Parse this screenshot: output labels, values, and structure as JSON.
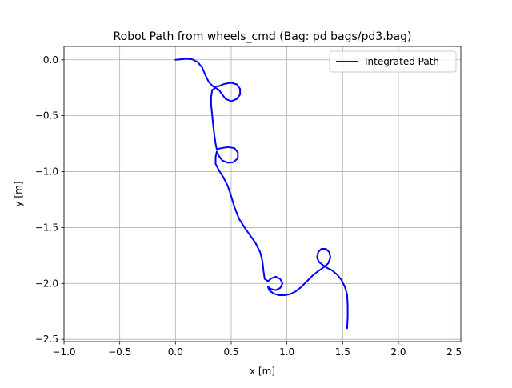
{
  "chart_data": {
    "type": "line",
    "title": "Robot Path from wheels_cmd (Bag: pd bags/pd3.bag)",
    "xlabel": "x [m]",
    "ylabel": "y [m]",
    "xlim": [
      -1.0,
      2.56
    ],
    "ylim": [
      -2.52,
      0.12
    ],
    "xticks": [
      -1.0,
      -0.5,
      0.0,
      0.5,
      1.0,
      1.5,
      2.0,
      2.5
    ],
    "xtick_labels": [
      "−1.0",
      "−0.5",
      "0.0",
      "0.5",
      "1.0",
      "1.5",
      "2.0",
      "2.5"
    ],
    "yticks": [
      0.0,
      -0.5,
      -1.0,
      -1.5,
      -2.0,
      -2.5
    ],
    "ytick_labels": [
      "0.0",
      "−0.5",
      "−1.0",
      "−1.5",
      "−2.0",
      "−2.5"
    ],
    "grid": true,
    "legend_position": "top-right",
    "series": [
      {
        "name": "Integrated Path",
        "color": "#0000ff",
        "points": [
          [
            0.0,
            0.0
          ],
          [
            0.05,
            0.005
          ],
          [
            0.1,
            0.01
          ],
          [
            0.15,
            0.005
          ],
          [
            0.2,
            -0.02
          ],
          [
            0.24,
            -0.07
          ],
          [
            0.27,
            -0.14
          ],
          [
            0.3,
            -0.2
          ],
          [
            0.34,
            -0.24
          ],
          [
            0.39,
            -0.235
          ],
          [
            0.44,
            -0.215
          ],
          [
            0.5,
            -0.205
          ],
          [
            0.55,
            -0.22
          ],
          [
            0.58,
            -0.26
          ],
          [
            0.58,
            -0.31
          ],
          [
            0.55,
            -0.35
          ],
          [
            0.5,
            -0.37
          ],
          [
            0.45,
            -0.35
          ],
          [
            0.42,
            -0.31
          ],
          [
            0.39,
            -0.27
          ],
          [
            0.36,
            -0.25
          ],
          [
            0.33,
            -0.27
          ],
          [
            0.32,
            -0.33
          ],
          [
            0.32,
            -0.4
          ],
          [
            0.33,
            -0.5
          ],
          [
            0.34,
            -0.6
          ],
          [
            0.35,
            -0.68
          ],
          [
            0.36,
            -0.75
          ],
          [
            0.37,
            -0.8
          ],
          [
            0.41,
            -0.79
          ],
          [
            0.47,
            -0.78
          ],
          [
            0.53,
            -0.79
          ],
          [
            0.56,
            -0.83
          ],
          [
            0.56,
            -0.88
          ],
          [
            0.52,
            -0.915
          ],
          [
            0.47,
            -0.92
          ],
          [
            0.42,
            -0.9
          ],
          [
            0.39,
            -0.86
          ],
          [
            0.37,
            -0.82
          ],
          [
            0.36,
            -0.87
          ],
          [
            0.36,
            -0.93
          ],
          [
            0.39,
            -0.99
          ],
          [
            0.43,
            -1.05
          ],
          [
            0.47,
            -1.13
          ],
          [
            0.5,
            -1.22
          ],
          [
            0.53,
            -1.32
          ],
          [
            0.57,
            -1.42
          ],
          [
            0.62,
            -1.5
          ],
          [
            0.67,
            -1.57
          ],
          [
            0.72,
            -1.64
          ],
          [
            0.76,
            -1.72
          ],
          [
            0.78,
            -1.8
          ],
          [
            0.79,
            -1.89
          ],
          [
            0.8,
            -1.96
          ],
          [
            0.83,
            -1.98
          ],
          [
            0.86,
            -1.955
          ],
          [
            0.9,
            -1.94
          ],
          [
            0.94,
            -1.96
          ],
          [
            0.96,
            -2.0
          ],
          [
            0.94,
            -2.04
          ],
          [
            0.9,
            -2.06
          ],
          [
            0.86,
            -2.05
          ],
          [
            0.83,
            -2.03
          ],
          [
            0.84,
            -2.06
          ],
          [
            0.88,
            -2.09
          ],
          [
            0.93,
            -2.105
          ],
          [
            0.98,
            -2.105
          ],
          [
            1.03,
            -2.095
          ],
          [
            1.08,
            -2.07
          ],
          [
            1.13,
            -2.03
          ],
          [
            1.18,
            -1.98
          ],
          [
            1.23,
            -1.93
          ],
          [
            1.28,
            -1.89
          ],
          [
            1.33,
            -1.855
          ],
          [
            1.37,
            -1.82
          ],
          [
            1.39,
            -1.77
          ],
          [
            1.38,
            -1.72
          ],
          [
            1.35,
            -1.69
          ],
          [
            1.31,
            -1.69
          ],
          [
            1.28,
            -1.72
          ],
          [
            1.27,
            -1.77
          ],
          [
            1.29,
            -1.81
          ],
          [
            1.33,
            -1.84
          ],
          [
            1.36,
            -1.86
          ],
          [
            1.4,
            -1.88
          ],
          [
            1.45,
            -1.92
          ],
          [
            1.49,
            -1.97
          ],
          [
            1.52,
            -2.03
          ],
          [
            1.54,
            -2.1
          ],
          [
            1.545,
            -2.2
          ],
          [
            1.545,
            -2.3
          ],
          [
            1.54,
            -2.4
          ]
        ]
      }
    ]
  }
}
